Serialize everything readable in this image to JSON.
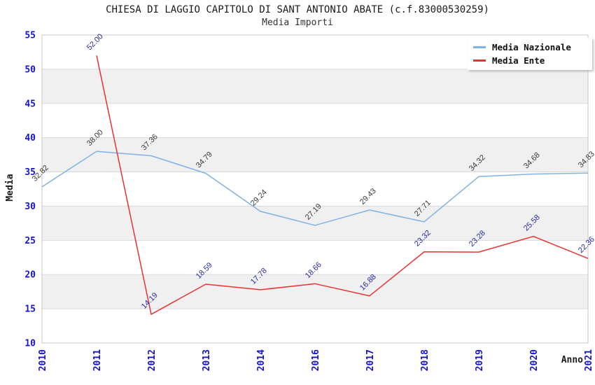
{
  "chart_data": {
    "type": "line",
    "title": "CHIESA DI LAGGIO CAPITOLO DI SANT ANTONIO ABATE (c.f.83000530259)",
    "subtitle": "Media Importi",
    "xlabel": "Anno",
    "ylabel": "Media",
    "ylim": [
      10,
      55
    ],
    "yticks": [
      10,
      15,
      20,
      25,
      30,
      35,
      40,
      45,
      50,
      55
    ],
    "categories": [
      "2010",
      "2011",
      "2012",
      "2013",
      "2014",
      "2016",
      "2017",
      "2018",
      "2019",
      "2020",
      "2021"
    ],
    "series": [
      {
        "name": "Media Nazionale",
        "color": "#7FB2E5",
        "label_color": "#3a3a3a",
        "values": [
          32.82,
          38.0,
          37.36,
          34.79,
          29.24,
          27.19,
          29.43,
          27.71,
          34.32,
          34.68,
          34.83
        ]
      },
      {
        "name": "Media Ente",
        "color": "#EA3232",
        "label_color": "#2929A3",
        "values": [
          null,
          52.0,
          14.19,
          18.59,
          17.78,
          18.66,
          16.88,
          23.32,
          23.28,
          25.58,
          22.36
        ]
      }
    ],
    "legend_position": "top-right",
    "grid": true,
    "band_colors": [
      "#ffffff",
      "#f0f0f0"
    ],
    "gridline_color": "#d9d9d9",
    "plot_border_color": "#c8c8c8",
    "axis_tick_color": "#1414CC"
  }
}
